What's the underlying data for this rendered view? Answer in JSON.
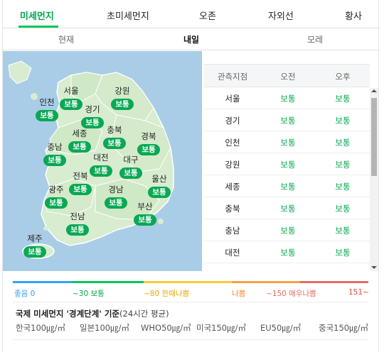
{
  "tabs": [
    "미세먼지",
    "초미세먼지",
    "오존",
    "자외선",
    "황사"
  ],
  "days": [
    "현재",
    "내일",
    "모레"
  ],
  "map_regions": [
    {
      "name": "서울",
      "status": "보통"
    },
    {
      "name": "강원",
      "status": "보통"
    },
    {
      "name": "인천",
      "status": "보통"
    },
    {
      "name": "경기",
      "status": "보통"
    },
    {
      "name": "세종",
      "status": "보통"
    },
    {
      "name": "충북",
      "status": "보통"
    },
    {
      "name": "경북",
      "status": "보통"
    },
    {
      "name": "충남",
      "status": "보통"
    },
    {
      "name": "대전",
      "status": "보통"
    },
    {
      "name": "대구",
      "status": "보통"
    },
    {
      "name": "전북",
      "status": "보통"
    },
    {
      "name": "울산",
      "status": "보통"
    },
    {
      "name": "광주",
      "status": "보통"
    },
    {
      "name": "경남",
      "status": "보통"
    },
    {
      "name": "부산",
      "status": "보통"
    },
    {
      "name": "전남",
      "status": "보통"
    },
    {
      "name": "제주",
      "status": "보통"
    }
  ],
  "table": {
    "headers": [
      "관측지점",
      "오전",
      "오후"
    ],
    "rows": [
      {
        "name": "서울",
        "am": "보통",
        "pm": "보통"
      },
      {
        "name": "경기",
        "am": "보통",
        "pm": "보통"
      },
      {
        "name": "인천",
        "am": "보통",
        "pm": "보통"
      },
      {
        "name": "강원",
        "am": "보통",
        "pm": "보통"
      },
      {
        "name": "세종",
        "am": "보통",
        "pm": "보통"
      },
      {
        "name": "충북",
        "am": "보통",
        "pm": "보통"
      },
      {
        "name": "충남",
        "am": "보통",
        "pm": "보통"
      },
      {
        "name": "대전",
        "am": "보통",
        "pm": "보통"
      }
    ]
  },
  "legend": {
    "labels": [
      "좋음 0",
      "~30 보통",
      "~80 한때나쁨",
      "나쁨",
      "~150 매우나쁨",
      "151~"
    ],
    "colors": {
      "good": "#32a1ff",
      "normal": "#03c75a",
      "bad_once": "#fdc93b",
      "bad": "#f5a048",
      "very_bad": "#e96a5f"
    }
  },
  "standard": {
    "title": "국제 미세먼지 '경계단계' 기준",
    "note": "(24시간 평균)",
    "items": [
      "한국100㎍/㎥",
      "일본100㎍/㎥",
      "WHO50㎍/㎥",
      "미국150㎍/㎥",
      "EU50㎍/㎥",
      "중국150㎍/㎥"
    ]
  }
}
